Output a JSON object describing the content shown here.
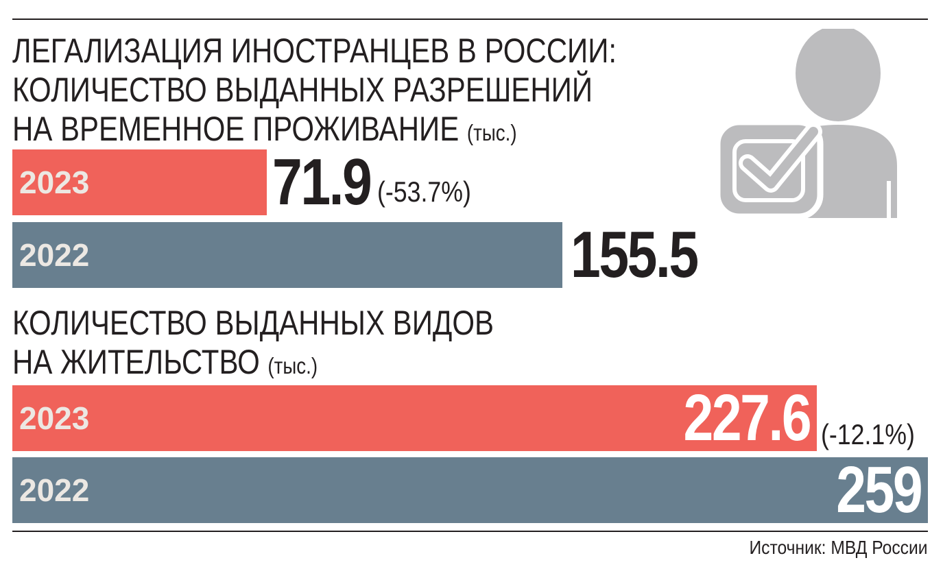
{
  "colors": {
    "bar_2023": "#f0625a",
    "bar_2022": "#687f8f",
    "icon": "#bcbcbe",
    "text": "#231f20"
  },
  "icons": {
    "illustration": "person-checkmark-icon"
  },
  "section1": {
    "title_lines": [
      "ЛЕГАЛИЗАЦИЯ ИНОСТРАНЦЕВ В РОССИИ:",
      "КОЛИЧЕСТВО ВЫДАННЫХ РАЗРЕШЕНИЙ",
      "НА ВРЕМЕННОЕ ПРОЖИВАНИЕ"
    ],
    "unit": "(тыс.)"
  },
  "section2": {
    "title_lines": [
      "КОЛИЧЕСТВО ВЫДАННЫХ ВИДОВ",
      "НА ЖИТЕЛЬСТВО"
    ],
    "unit": "(тыс.)"
  },
  "chart_data": [
    {
      "type": "bar",
      "orientation": "horizontal",
      "title": "ЛЕГАЛИЗАЦИЯ ИНОСТРАНЦЕВ В РОССИИ: КОЛИЧЕСТВО ВЫДАННЫХ РАЗРЕШЕНИЙ НА ВРЕМЕННОЕ ПРОЖИВАНИЕ",
      "unit": "(тыс.)",
      "categories": [
        "2023",
        "2022"
      ],
      "values": [
        71.9,
        155.5
      ],
      "value_labels": [
        "71.9",
        "155.5"
      ],
      "change_labels": [
        "(-53.7%)",
        ""
      ],
      "xlim": [
        0,
        259
      ]
    },
    {
      "type": "bar",
      "orientation": "horizontal",
      "title": "КОЛИЧЕСТВО ВЫДАННЫХ ВИДОВ НА ЖИТЕЛЬСТВО",
      "unit": "(тыс.)",
      "categories": [
        "2023",
        "2022"
      ],
      "values": [
        227.6,
        259
      ],
      "value_labels": [
        "227.6",
        "259"
      ],
      "change_labels": [
        "(-12.1%)",
        ""
      ],
      "xlim": [
        0,
        259
      ]
    }
  ],
  "source": "Источник: МВД России"
}
